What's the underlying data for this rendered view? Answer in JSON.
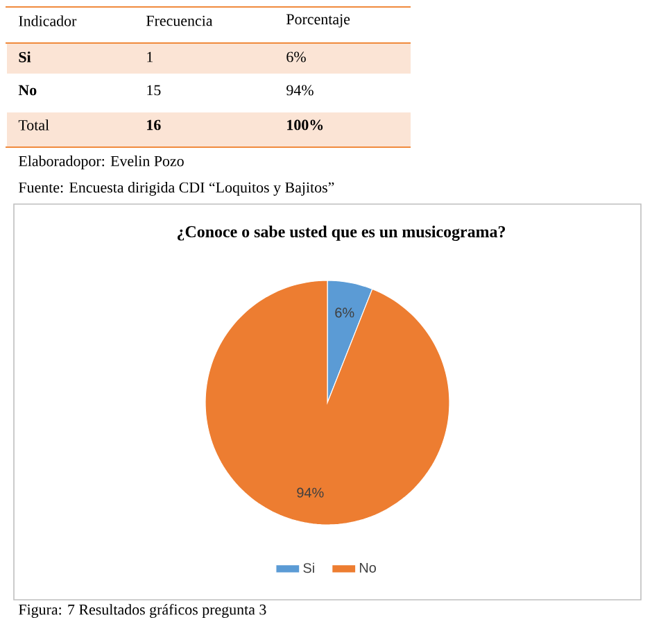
{
  "chart_data": {
    "type": "pie",
    "title": "¿Conoce o sabe usted que es un musicograma?",
    "categories": [
      "Si",
      "No"
    ],
    "values": [
      6,
      94
    ],
    "colors": [
      "#5b9bd5",
      "#ed7d31"
    ],
    "value_labels": [
      "6%",
      "94%"
    ],
    "legend": "bottom",
    "annotations": [
      "Indicador",
      "Frecuencia",
      "Porcentaje",
      "Si",
      "1",
      "6%",
      "No",
      "15",
      "94%",
      "Total",
      "16",
      "100%",
      "Elaboradopor: Evelin Pozo",
      "Fuente: Encuesta dirigida CDI “Loquitos y Bajitos”",
      "Figura: 7 Resultados gráficos pregunta 3"
    ]
  }
}
